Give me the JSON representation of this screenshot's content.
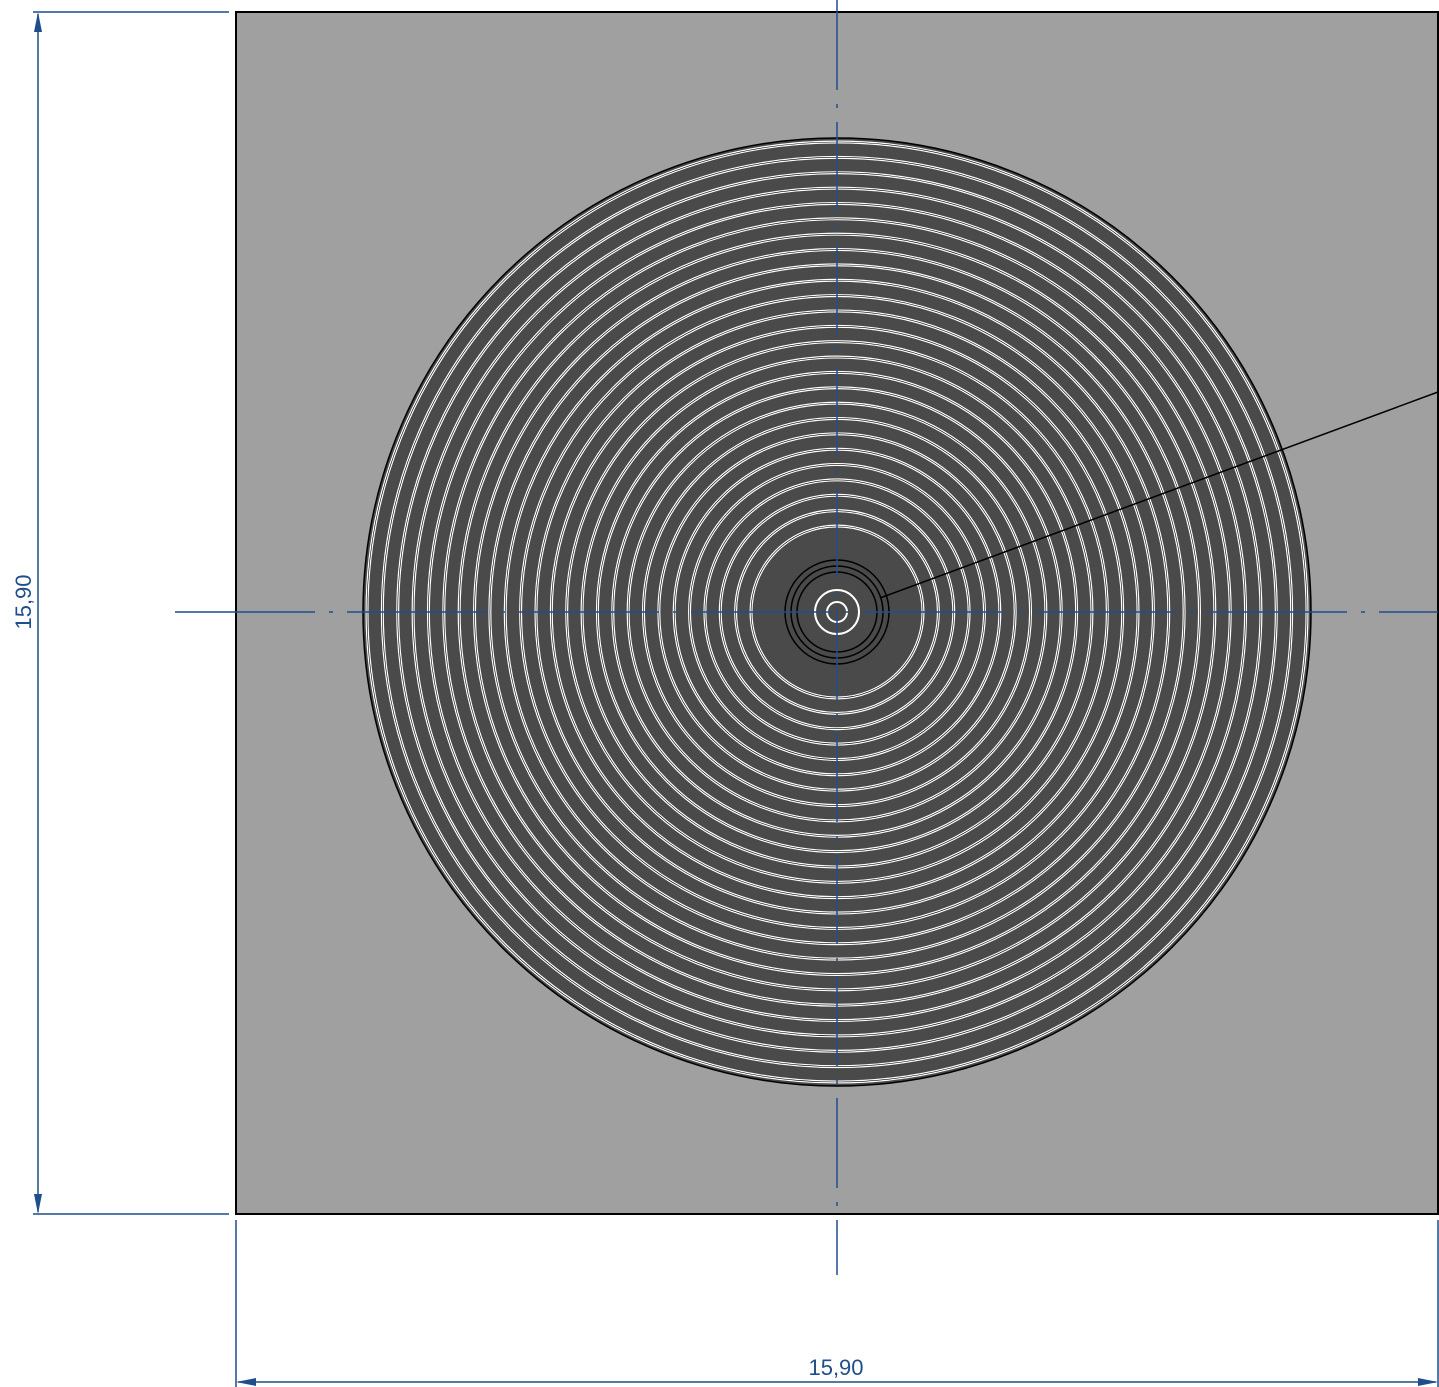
{
  "drawing": {
    "dimensions": {
      "width_label": "15,90",
      "height_label": "15,90"
    },
    "spiral": {
      "ring_count": 26
    },
    "colors": {
      "plate_fill": "#a0a0a0",
      "coil_fill": "#4a4a4a",
      "gap_stroke": "#ffffff",
      "outline": "#000000",
      "dimension_line": "#1f4e8c",
      "centerline": "#1f4e8c"
    }
  }
}
